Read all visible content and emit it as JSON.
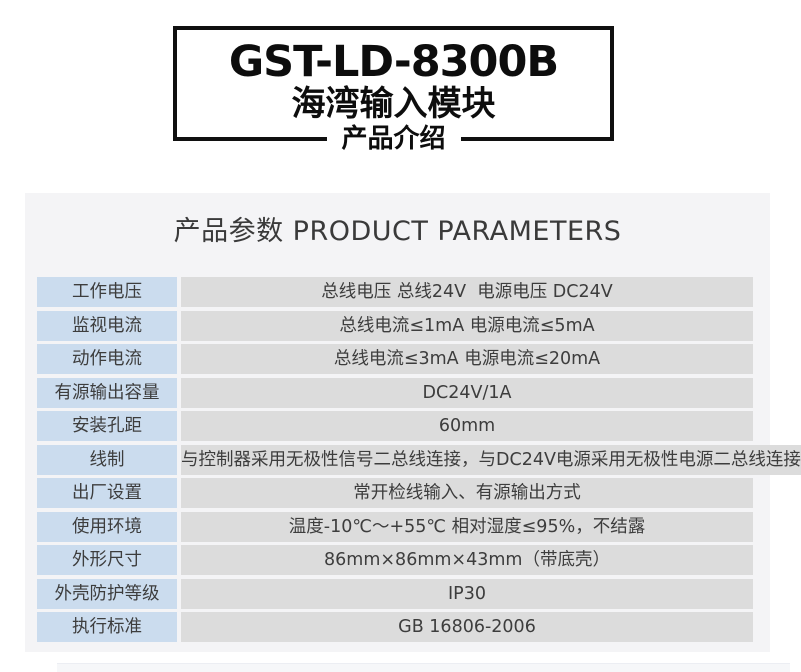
{
  "title_box": {
    "model": "GST-LD-8300B",
    "product_name": "海湾输入模块",
    "badge": "产品介绍"
  },
  "section": {
    "heading": "产品参数 PRODUCT PARAMETERS"
  },
  "table": {
    "rows": [
      {
        "label": "工作电压",
        "value": "总线电压 总线24V  电源电压 DC24V"
      },
      {
        "label": "监视电流",
        "value": "总线电流≤1mA 电源电流≤5mA"
      },
      {
        "label": "动作电流",
        "value": "总线电流≤3mA 电源电流≤20mA"
      },
      {
        "label": "有源输出容量",
        "value": "DC24V/1A"
      },
      {
        "label": "安装孔距",
        "value": "60mm"
      },
      {
        "label": "线制",
        "value": "与控制器采用无极性信号二总线连接，与DC24V电源采用无极性电源二总线连接"
      },
      {
        "label": "出厂设置",
        "value": "常开检线输入、有源输出方式"
      },
      {
        "label": "使用环境",
        "value": "温度-10℃～+55℃ 相对湿度≤95%，不结露"
      },
      {
        "label": "外形尺寸",
        "value": "86mm×86mm×43mm（带底壳）"
      },
      {
        "label": "外壳防护等级",
        "value": "IP30"
      },
      {
        "label": "执行标准",
        "value": "GB 16806-2006"
      }
    ]
  },
  "colors": {
    "label_cell_bg": "#cbdcee",
    "value_cell_bg": "#dcdcdc",
    "panel_bg": "#f4f4f6",
    "title_text": "#0d0d0d",
    "table_text": "#3d3d3d"
  }
}
